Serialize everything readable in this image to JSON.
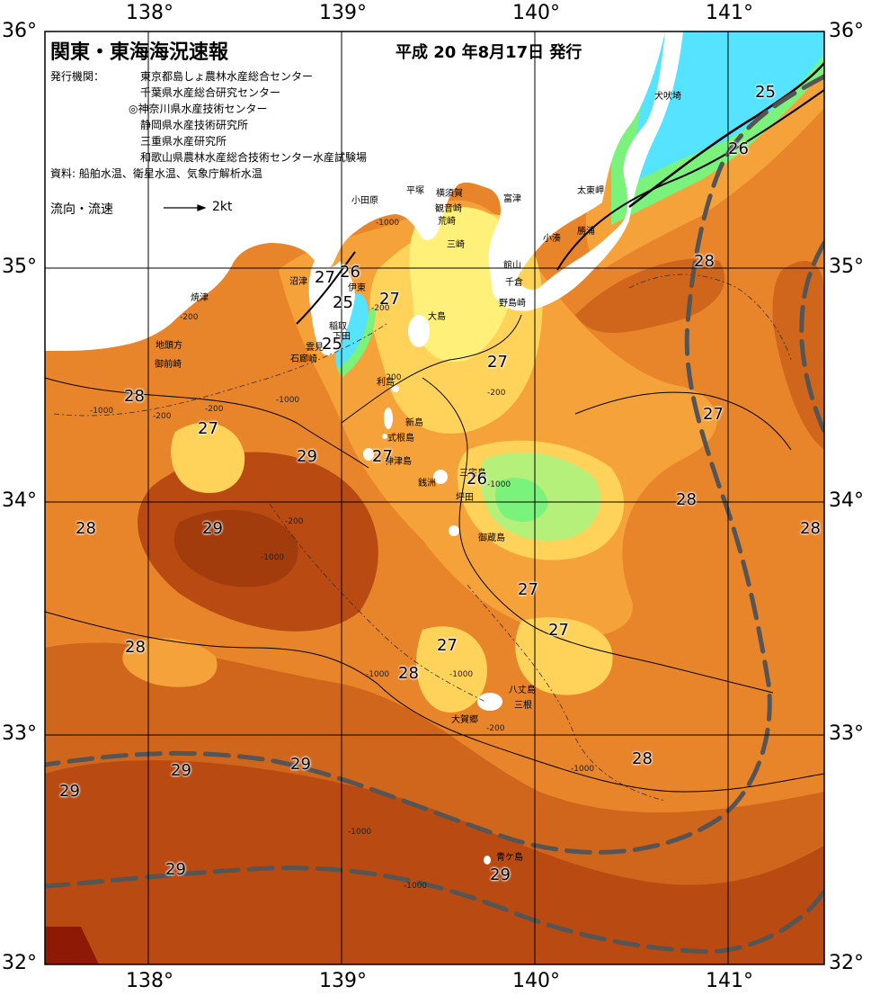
{
  "title": "関東・東海海況速報",
  "issue_date": "平成  20 年8月17日 発行",
  "issuer_label": "発行機関：",
  "issuers": [
    "東京都島しょ農林水産総合センター",
    "千葉県水産総合研究センター",
    "◎神奈川県水産技術センター",
    "静岡県水産技術研究所",
    "三重県水産研究所",
    "和歌山県農林水産総合技術センター水産試験場"
  ],
  "sources": "資料: 船舶水温、衛星水温、気象庁解析水温",
  "current_legend": {
    "label": "流向・流速",
    "speed": "2kt"
  },
  "lon_ticks": [
    "138°",
    "139°",
    "140°",
    "141°"
  ],
  "lat_ticks": [
    "36°",
    "35°",
    "34°",
    "33°",
    "32°"
  ],
  "colors": {
    "land": "#ffffff",
    "t24": "#55e3ff",
    "t25": "#7bf27b",
    "t26": "#b5f07a",
    "t27a": "#fff07a",
    "t27b": "#ffd25a",
    "t28a": "#f6a23a",
    "t28b": "#e8842a",
    "t29a": "#d0651c",
    "t29b": "#b84a12",
    "t30": "#8e1a06",
    "kuroshio": "#555555"
  },
  "places": [
    {
      "id": "inubosaki",
      "name": "犬吠埼"
    },
    {
      "id": "taitomisaki",
      "name": "太東岬"
    },
    {
      "id": "katsuura",
      "name": "勝浦"
    },
    {
      "id": "kominato",
      "name": "小湊"
    },
    {
      "id": "futtsu",
      "name": "富津"
    },
    {
      "id": "tateyama",
      "name": "館山"
    },
    {
      "id": "chikura",
      "name": "千倉"
    },
    {
      "id": "nojimazaki",
      "name": "野島崎"
    },
    {
      "id": "hiratsuka",
      "name": "平塚"
    },
    {
      "id": "yokosuka",
      "name": "横須賀"
    },
    {
      "id": "kannonzaki",
      "name": "観音崎"
    },
    {
      "id": "arasaki",
      "name": "荒崎"
    },
    {
      "id": "misaki",
      "name": "三崎"
    },
    {
      "id": "odawara",
      "name": "小田原"
    },
    {
      "id": "numazu",
      "name": "沼津"
    },
    {
      "id": "ito",
      "name": "伊東"
    },
    {
      "id": "inatori",
      "name": "稲取"
    },
    {
      "id": "shimoda",
      "name": "下田"
    },
    {
      "id": "kumomi",
      "name": "雲見"
    },
    {
      "id": "irozaki",
      "name": "石廊崎"
    },
    {
      "id": "yaizu",
      "name": "焼津"
    },
    {
      "id": "jitogata",
      "name": "地頭方"
    },
    {
      "id": "omaezaki",
      "name": "御前崎"
    },
    {
      "id": "oshima",
      "name": "大島"
    },
    {
      "id": "toshima",
      "name": "利島"
    },
    {
      "id": "niijima",
      "name": "新島"
    },
    {
      "id": "shikinejima",
      "name": "式根島"
    },
    {
      "id": "kozushima",
      "name": "神津島"
    },
    {
      "id": "miyakejima",
      "name": "三宅島"
    },
    {
      "id": "zenisu",
      "name": "銭洲"
    },
    {
      "id": "tsubota",
      "name": "坪田"
    },
    {
      "id": "mikurajima",
      "name": "御蔵島"
    },
    {
      "id": "hachijojima",
      "name": "八丈島"
    },
    {
      "id": "mitsune",
      "name": "三根"
    },
    {
      "id": "okago",
      "name": "大賀郷"
    },
    {
      "id": "aogashima",
      "name": "青ケ島"
    }
  ],
  "isotherm_labels": [
    {
      "id": "t25-inubo",
      "value": "25"
    },
    {
      "id": "t26-katsuura",
      "value": "26"
    },
    {
      "id": "t28-east",
      "value": "28"
    },
    {
      "id": "t27-numazu",
      "value": "27"
    },
    {
      "id": "t26-ito",
      "value": "26"
    },
    {
      "id": "t25-izu-a",
      "value": "25"
    },
    {
      "id": "t27-sagami",
      "value": "27"
    },
    {
      "id": "t25-izu-b",
      "value": "25"
    },
    {
      "id": "t27-center",
      "value": "27"
    },
    {
      "id": "t28-suruga",
      "value": "28"
    },
    {
      "id": "t27-west",
      "value": "27"
    },
    {
      "id": "t27-east2",
      "value": "27"
    },
    {
      "id": "t29-west",
      "value": "29"
    },
    {
      "id": "t27-kozu",
      "value": "27"
    },
    {
      "id": "t26-miyake",
      "value": "26"
    },
    {
      "id": "t28-far-west",
      "value": "28"
    },
    {
      "id": "t29-southwest",
      "value": "29"
    },
    {
      "id": "t28-mikura-east",
      "value": "28"
    },
    {
      "id": "t28-far-east",
      "value": "28"
    },
    {
      "id": "t27-south",
      "value": "27"
    },
    {
      "id": "t27-south2",
      "value": "27"
    },
    {
      "id": "t27-hachijo",
      "value": "27"
    },
    {
      "id": "t28-w2",
      "value": "28"
    },
    {
      "id": "t28-hachijo",
      "value": "28"
    },
    {
      "id": "t28-se",
      "value": "28"
    },
    {
      "id": "t29-s1",
      "value": "29"
    },
    {
      "id": "t29-s2",
      "value": "29"
    },
    {
      "id": "t29-s3",
      "value": "29"
    },
    {
      "id": "t29-s4",
      "value": "29"
    },
    {
      "id": "t29-aoga",
      "value": "29"
    }
  ],
  "depth_labels": [
    "-200",
    "-1000",
    "-200",
    "-1000",
    "-200",
    "-200",
    "-1000",
    "-200",
    "-1000",
    "-200",
    "-200",
    "-1000",
    "-1000",
    "-1000",
    "-200",
    "-1000",
    "-1000",
    "-1000"
  ]
}
